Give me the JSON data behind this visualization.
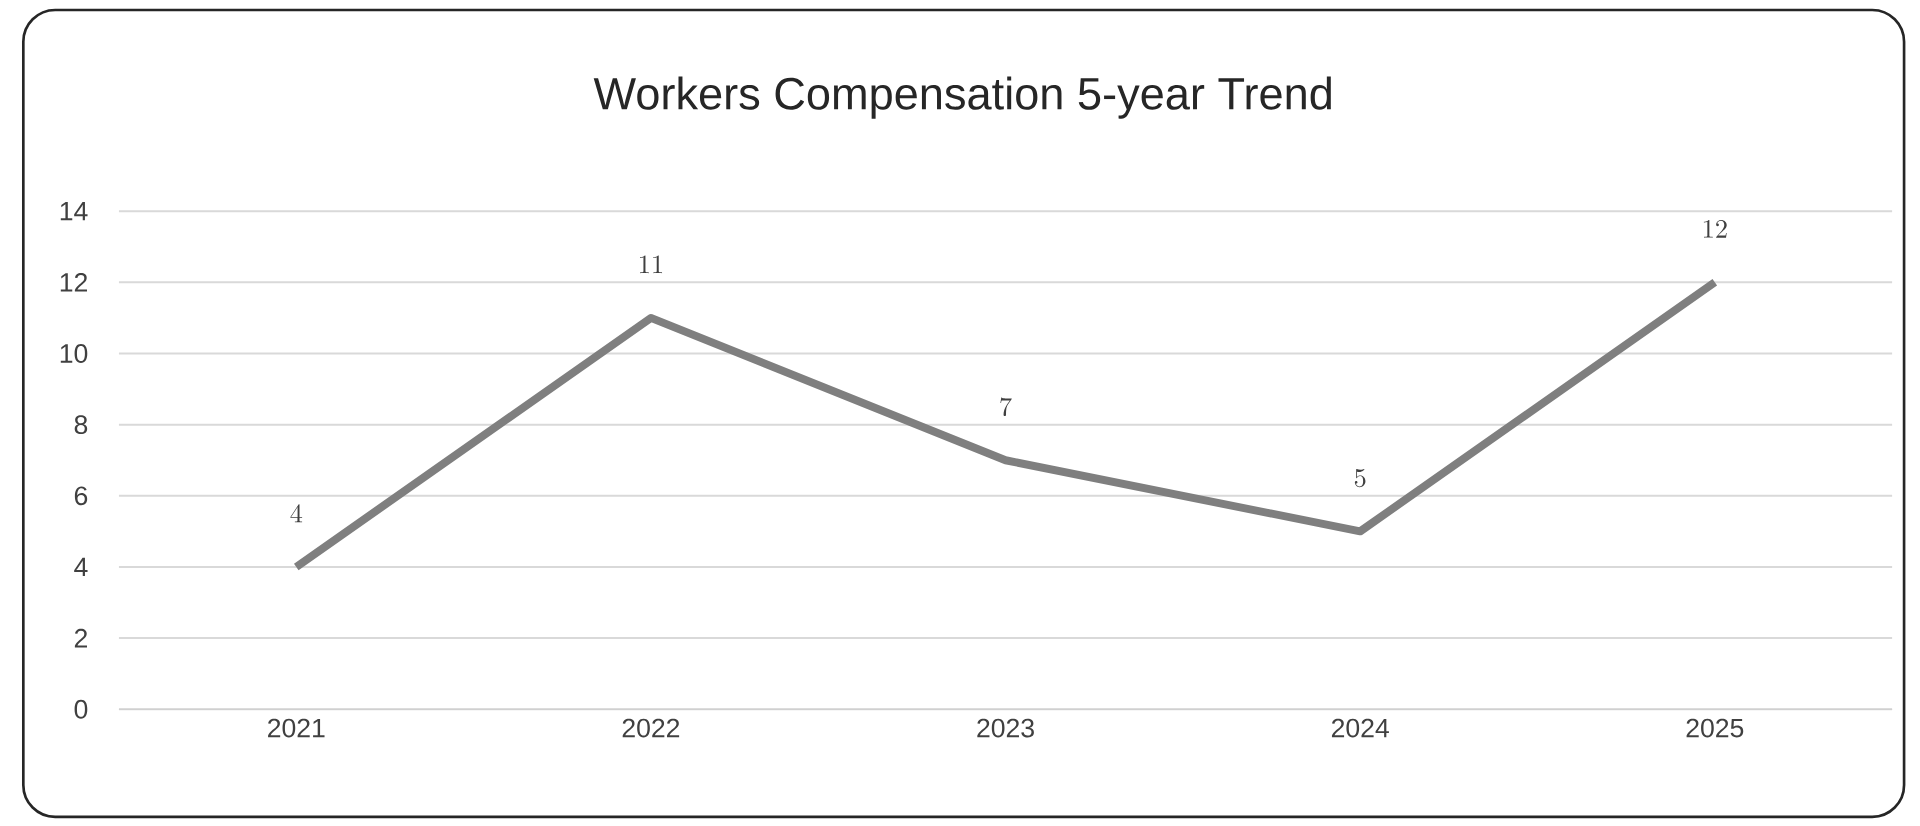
{
  "chart_data": {
    "type": "line",
    "title": "Workers Compensation 5-year Trend",
    "categories": [
      "2021",
      "2022",
      "2023",
      "2024",
      "2025"
    ],
    "series": [
      {
        "color": "#7f7f7f",
        "values": [
          4,
          11,
          7,
          5,
          12
        ]
      }
    ],
    "ylim": [
      0,
      14
    ],
    "yticks": [
      0,
      2,
      4,
      6,
      8,
      10,
      12,
      14
    ],
    "grid": "y",
    "data_labels": true,
    "marker": "none",
    "line_style": "solid"
  }
}
